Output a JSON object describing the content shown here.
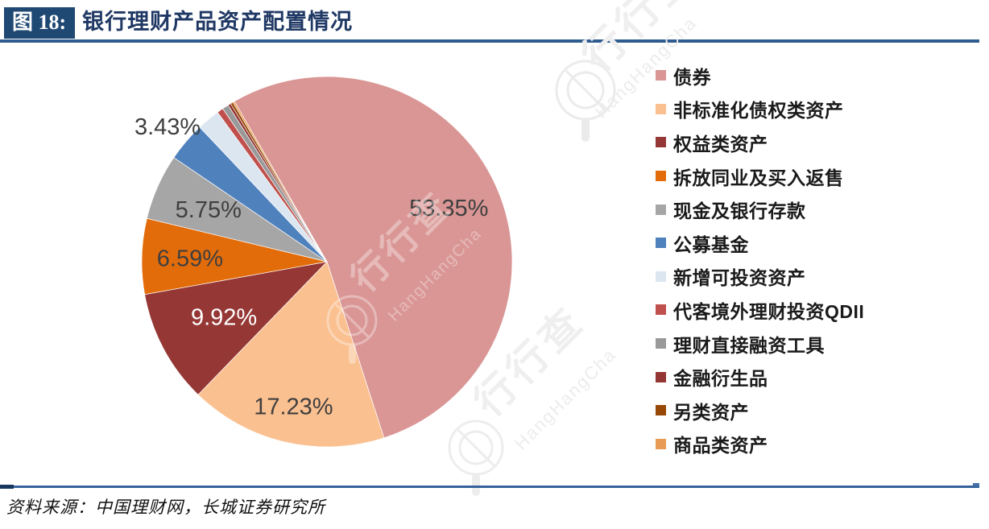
{
  "header": {
    "figure_tag": "图 18:",
    "title": "银行理财产品资产配置情况"
  },
  "footer": {
    "source": "资料来源：中国理财网，长城证券研究所"
  },
  "watermark": {
    "text_cn": "行行查",
    "text_en": "HangHangCha"
  },
  "colors": {
    "title_box": "#1F4873",
    "title_text": "#1F3864",
    "rule_blue": "#2E5C8E",
    "label_dark": "#3F3F3F",
    "label_white": "#FFFFFF"
  },
  "chart_data": {
    "type": "pie",
    "title": "银行理财产品资产配置情况",
    "legend_position": "right",
    "start_angle_clockwise_from_top_deg": -30,
    "slices": [
      {
        "name": "债券",
        "value": 53.35,
        "label": "53.35%",
        "label_color": "#3F3F3F",
        "color": "#D99694",
        "estimated": false
      },
      {
        "name": "非标准化债权类资产",
        "value": 17.23,
        "label": "17.23%",
        "label_color": "#3F3F3F",
        "color": "#FAC090",
        "estimated": false
      },
      {
        "name": "权益类资产",
        "value": 9.92,
        "label": "9.92%",
        "label_color": "#FFFFFF",
        "color": "#953735",
        "estimated": false
      },
      {
        "name": "拆放同业及买入返售",
        "value": 6.59,
        "label": "6.59%",
        "label_color": "#3F3F3F",
        "color": "#E36C0A",
        "estimated": false
      },
      {
        "name": "现金及银行存款",
        "value": 5.75,
        "label": "5.75%",
        "label_color": "#3F3F3F",
        "color": "#A6A6A6",
        "estimated": false
      },
      {
        "name": "公募基金",
        "value": 3.43,
        "label": "3.43%",
        "label_color": "#3F3F3F",
        "color": "#4F81BD",
        "estimated": false,
        "label_outside": true
      },
      {
        "name": "新增可投资资产",
        "value": 2.0,
        "label": null,
        "color": "#DCE6F1",
        "estimated": true
      },
      {
        "name": "代客境外理财投资QDII",
        "value": 0.55,
        "label": null,
        "color": "#C0504D",
        "estimated": true
      },
      {
        "name": "理财直接融资工具",
        "value": 0.55,
        "label": null,
        "color": "#999999",
        "estimated": true
      },
      {
        "name": "金融衍生品",
        "value": 0.25,
        "label": null,
        "color": "#943634",
        "estimated": true
      },
      {
        "name": "另类资产",
        "value": 0.22,
        "label": null,
        "color": "#974806",
        "estimated": true
      },
      {
        "name": "商品类资产",
        "value": 0.16,
        "label": null,
        "color": "#E89B54",
        "estimated": true
      }
    ]
  }
}
